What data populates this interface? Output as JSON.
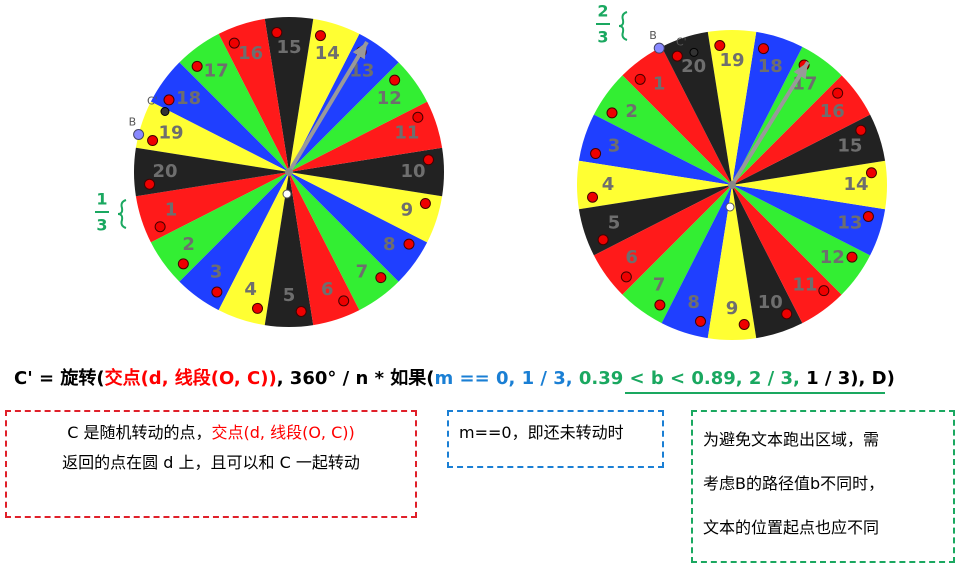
{
  "wheels": [
    {
      "labels": [
        "1",
        "2",
        "3",
        "4",
        "5",
        "6",
        "7",
        "8",
        "9",
        "10",
        "11",
        "12",
        "13",
        "14",
        "15",
        "16",
        "17",
        "18",
        "19",
        "20"
      ],
      "point_labels": [
        "B",
        "C'"
      ],
      "fraction": {
        "numerator": "1",
        "denominator": "3"
      }
    },
    {
      "labels": [
        "1",
        "2",
        "3",
        "4",
        "5",
        "6",
        "7",
        "8",
        "9",
        "10",
        "11",
        "12",
        "13",
        "14",
        "15",
        "16",
        "17",
        "18",
        "19",
        "20"
      ],
      "point_labels": [
        "B",
        "C'"
      ],
      "fraction": {
        "numerator": "2",
        "denominator": "3"
      }
    }
  ],
  "formula": {
    "parts": [
      {
        "text": "C' = ",
        "color": "#000000"
      },
      {
        "text": "旋转(",
        "color": "#000000"
      },
      {
        "text": "交点(d, 线段(O, C))",
        "color": "#ff0000"
      },
      {
        "text": ", 360° / n * 如果(",
        "color": "#000000"
      },
      {
        "text": "m == 0, 1 / 3, ",
        "color": "#1a7fd4"
      },
      {
        "text": "0.39 < b < 0.89, 2 / 3, ",
        "color": "#1aa860"
      },
      {
        "text": "1 / 3), D)",
        "color": "#000000"
      }
    ]
  },
  "notes": [
    {
      "lines": [
        [
          {
            "text": "C 是随机转动的点，",
            "color": "#000000"
          },
          {
            "text": "交点(d, 线段(O, C))",
            "color": "#ff0000"
          }
        ],
        [
          {
            "text": "返回的点在圆 d 上，且可以和 C 一起转动",
            "color": "#000000"
          }
        ]
      ]
    },
    {
      "lines": [
        [
          {
            "text": "m==0，即还未转动时",
            "color": "#000000"
          }
        ]
      ]
    },
    {
      "lines": [
        [
          {
            "text": "为避免文本跑出区域，需",
            "color": "#000000"
          }
        ],
        [
          {
            "text": "考虑B的路径值b不同时，",
            "color": "#000000"
          }
        ],
        [
          {
            "text": "文本的位置起点也应不同",
            "color": "#000000"
          }
        ]
      ]
    }
  ]
}
